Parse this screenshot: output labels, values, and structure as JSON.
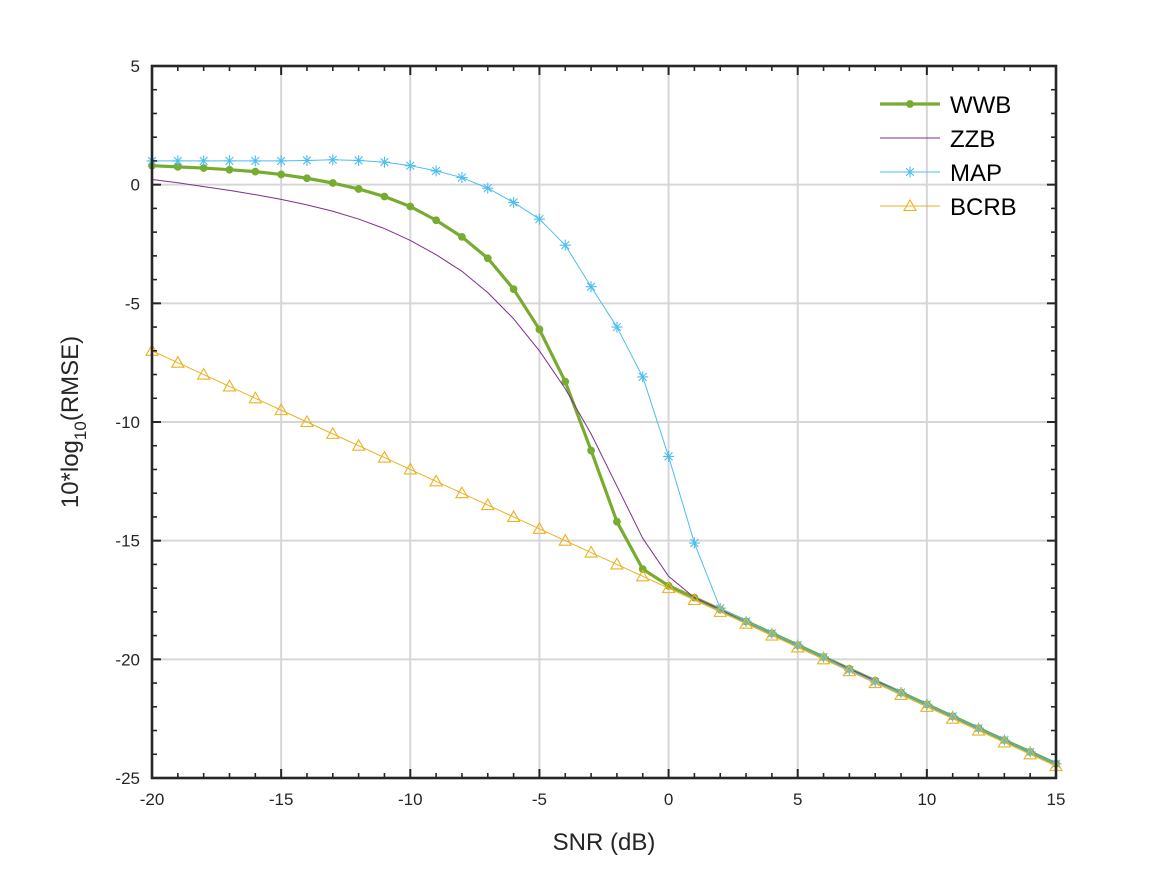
{
  "chart_data": {
    "type": "line",
    "xlabel": "SNR (dB)",
    "ylabel": {
      "prefix": "10*log",
      "subscript": "10",
      "suffix": "(RMSE)"
    },
    "xlim": [
      -20,
      15
    ],
    "ylim": [
      -25,
      5
    ],
    "x_ticks": [
      -20,
      -15,
      -10,
      -5,
      0,
      5,
      10,
      15
    ],
    "y_ticks": [
      -25,
      -20,
      -15,
      -10,
      -5,
      0,
      5
    ],
    "x_tick_labels": [
      "-20",
      "-15",
      "-10",
      "-5",
      "0",
      "5",
      "10",
      "15"
    ],
    "y_tick_labels": [
      "-25",
      "-20",
      "-15",
      "-10",
      "-5",
      "0",
      "5"
    ],
    "grid": true,
    "box": true,
    "legend_position": "top-right",
    "x": [
      -20,
      -19,
      -18,
      -17,
      -16,
      -15,
      -14,
      -13,
      -12,
      -11,
      -10,
      -9,
      -8,
      -7,
      -6,
      -5,
      -4,
      -3,
      -2,
      -1,
      0,
      1,
      2,
      3,
      4,
      5,
      6,
      7,
      8,
      9,
      10,
      11,
      12,
      13,
      14,
      15
    ],
    "series": [
      {
        "name": "WWB",
        "color": "#77ac30",
        "marker": "dot",
        "values": [
          0.8,
          0.75,
          0.7,
          0.63,
          0.55,
          0.43,
          0.27,
          0.07,
          -0.18,
          -0.5,
          -0.92,
          -1.5,
          -2.2,
          -3.1,
          -4.4,
          -6.1,
          -8.3,
          -11.2,
          -14.2,
          -16.2,
          -16.9,
          -17.4,
          -17.9,
          -18.4,
          -18.9,
          -19.4,
          -19.9,
          -20.4,
          -20.9,
          -21.4,
          -21.9,
          -22.4,
          -22.9,
          -23.4,
          -23.9,
          -24.4
        ]
      },
      {
        "name": "ZZB",
        "color": "#7e2f8e",
        "marker": "none",
        "values": [
          0.22,
          0.08,
          -0.08,
          -0.24,
          -0.42,
          -0.62,
          -0.85,
          -1.12,
          -1.45,
          -1.85,
          -2.35,
          -2.95,
          -3.65,
          -4.55,
          -5.65,
          -7.0,
          -8.6,
          -10.5,
          -12.7,
          -14.9,
          -16.5,
          -17.4,
          -17.9,
          -18.4,
          -18.9,
          -19.4,
          -19.9,
          -20.4,
          -20.9,
          -21.4,
          -21.9,
          -22.4,
          -22.9,
          -23.4,
          -23.9,
          -24.4
        ]
      },
      {
        "name": "MAP",
        "color": "#4dbeee",
        "marker": "star",
        "values": [
          1.0,
          1.0,
          1.0,
          1.0,
          1.0,
          1.0,
          1.02,
          1.05,
          1.02,
          0.95,
          0.8,
          0.58,
          0.3,
          -0.15,
          -0.75,
          -1.45,
          -2.55,
          -4.3,
          -6.0,
          -8.1,
          -11.45,
          -15.1,
          -17.85,
          -18.4,
          -18.9,
          -19.4,
          -19.9,
          -20.45,
          -20.95,
          -21.4,
          -21.9,
          -22.4,
          -22.9,
          -23.4,
          -23.9,
          -24.4
        ]
      },
      {
        "name": "BCRB",
        "color": "#edb120",
        "marker": "triangle",
        "values": [
          -7.0,
          -7.5,
          -8.0,
          -8.5,
          -9.0,
          -9.5,
          -10.0,
          -10.5,
          -11.0,
          -11.5,
          -12.0,
          -12.5,
          -13.0,
          -13.5,
          -14.0,
          -14.5,
          -15.0,
          -15.5,
          -16.0,
          -16.5,
          -17.0,
          -17.5,
          -18.0,
          -18.5,
          -19.0,
          -19.5,
          -20.0,
          -20.5,
          -21.0,
          -21.5,
          -22.0,
          -22.5,
          -23.0,
          -23.5,
          -24.0,
          -24.5
        ]
      }
    ]
  }
}
